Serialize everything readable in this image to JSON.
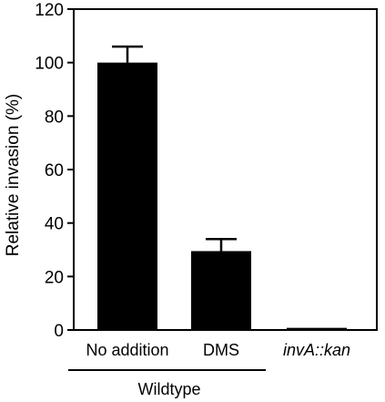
{
  "chart_data": {
    "type": "bar",
    "title": "",
    "xlabel": "",
    "ylabel": "Relative invasion (%)",
    "ylim": [
      0,
      120
    ],
    "yticks": [
      0,
      20,
      40,
      60,
      80,
      100,
      120
    ],
    "grid": false,
    "categories": [
      "No addition",
      "DMS",
      "invA::kan"
    ],
    "values": [
      100,
      29.5,
      0.8
    ],
    "errors": [
      6,
      4.5,
      0
    ],
    "category_italic": [
      false,
      false,
      true
    ],
    "group": {
      "label": "Wildtype",
      "spans_categories": [
        "No addition",
        "DMS"
      ]
    },
    "colors": {
      "bar": "#000000",
      "axis": "#000000"
    }
  }
}
